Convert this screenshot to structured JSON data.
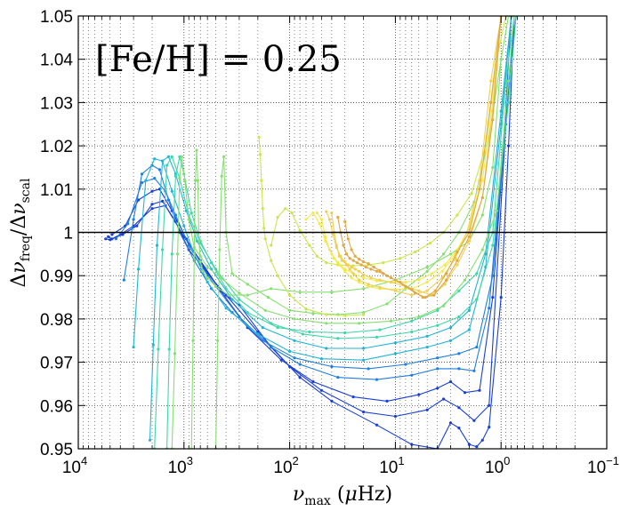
{
  "chart_data": {
    "type": "line",
    "title": "",
    "annotation": "[Fe/H] = 0.25",
    "xlabel": "νmax (μHz)",
    "ylabel": "Δνfreq/Δνscal",
    "x_scale": "log",
    "x_reversed": true,
    "xlim": [
      10000,
      0.1
    ],
    "ylim": [
      0.95,
      1.05
    ],
    "x_ticks": [
      {
        "value": 10000,
        "base": "10",
        "exp": "4"
      },
      {
        "value": 1000,
        "base": "10",
        "exp": "3"
      },
      {
        "value": 100,
        "base": "10",
        "exp": "2"
      },
      {
        "value": 10,
        "base": "10",
        "exp": "1"
      },
      {
        "value": 1,
        "base": "10",
        "exp": "0"
      },
      {
        "value": 0.1,
        "base": "10",
        "exp": "−1"
      }
    ],
    "y_ticks": [
      "0.95",
      "0.96",
      "0.97",
      "0.98",
      "0.99",
      "1",
      "1.01",
      "1.02",
      "1.03",
      "1.04",
      "1.05"
    ],
    "grid": "dotted",
    "reference_line": 1.0,
    "colormap": [
      "#1a3fd6",
      "#1f7fe0",
      "#22b5d6",
      "#3fd6a8",
      "#86e070",
      "#c8e84a",
      "#f2e94a",
      "#f0d050",
      "#e0a845"
    ],
    "series": [
      {
        "x": [
          5500,
          5000,
          4000,
          3000,
          2000,
          1500,
          1000,
          700,
          450,
          300,
          150,
          80,
          40,
          15,
          7,
          4,
          3,
          2.5,
          2,
          1.7,
          1.5,
          1.3,
          1,
          0.85,
          0.75
        ],
        "y": [
          0.9985,
          0.9983,
          0.9995,
          1.0015,
          1.0055,
          1.0062,
          0.999,
          0.9935,
          0.9865,
          0.9832,
          0.9735,
          0.9665,
          0.961,
          0.9555,
          0.951,
          0.95,
          0.956,
          0.9548,
          0.951,
          0.9505,
          0.952,
          0.955,
          0.985,
          1.02,
          1.05
        ]
      },
      {
        "x": [
          5200,
          4800,
          3800,
          2800,
          2000,
          1600,
          1200,
          900,
          600,
          400,
          200,
          100,
          50,
          20,
          10,
          5,
          3.5,
          2.5,
          1.8,
          1.3,
          0.9,
          0.75
        ],
        "y": [
          0.999,
          0.9985,
          0.9995,
          1.0015,
          1.0065,
          1.0072,
          1.0025,
          0.996,
          0.9905,
          0.9855,
          0.977,
          0.969,
          0.9635,
          0.9585,
          0.9575,
          0.959,
          0.9615,
          0.9595,
          0.9565,
          0.96,
          1.025,
          1.05
        ]
      },
      {
        "x": [
          4800,
          3600,
          2700,
          2000,
          1700,
          1300,
          950,
          650,
          450,
          250,
          120,
          60,
          25,
          12,
          6,
          4,
          3,
          2.2,
          1.6,
          1.2,
          0.85,
          0.72
        ],
        "y": [
          0.9995,
          1.0015,
          1.0075,
          1.0095,
          1.01,
          1.005,
          0.9985,
          0.992,
          0.9865,
          0.978,
          0.9705,
          0.9655,
          0.962,
          0.961,
          0.9625,
          0.964,
          0.9655,
          0.963,
          0.9635,
          0.985,
          1.035,
          1.05
        ]
      },
      {
        "x": [
          4400,
          3400,
          2500,
          1900,
          1500,
          1200,
          900,
          700,
          500,
          300,
          150,
          80,
          35,
          15,
          7,
          4,
          2.5,
          1.8,
          1.3,
          0.95,
          0.8
        ],
        "y": [
          0.9985,
          1.002,
          1.0115,
          1.0125,
          1.0095,
          1.004,
          0.997,
          0.9925,
          0.9875,
          0.9805,
          0.9735,
          0.9695,
          0.9665,
          0.966,
          0.967,
          0.9685,
          0.9685,
          0.968,
          0.9825,
          1.02,
          1.05
        ]
      },
      {
        "x": [
          3700,
          3000,
          2500,
          2000,
          1700,
          1400,
          1100,
          800,
          550,
          350,
          180,
          90,
          40,
          18,
          8,
          4,
          2.5,
          1.7,
          1.2,
          0.9,
          0.75
        ],
        "y": [
          0.989,
          1.003,
          1.0135,
          1.0155,
          1.0145,
          1.0075,
          1.0,
          0.9935,
          0.987,
          0.9815,
          0.975,
          0.971,
          0.969,
          0.9685,
          0.9695,
          0.971,
          0.972,
          0.9735,
          0.99,
          1.025,
          1.05
        ]
      },
      {
        "x": [
          3000,
          2700,
          2300,
          1900,
          1600,
          1300,
          1000,
          800,
          600,
          400,
          200,
          100,
          50,
          20,
          10,
          5,
          3,
          2,
          1.4,
          1.0,
          0.8
        ],
        "y": [
          0.9735,
          0.9915,
          1.012,
          1.017,
          1.0165,
          1.0095,
          1.0015,
          0.995,
          0.9885,
          0.9825,
          0.9765,
          0.9725,
          0.9708,
          0.9705,
          0.972,
          0.9735,
          0.975,
          0.9775,
          0.992,
          1.025,
          1.05
        ]
      },
      {
        "x": [
          2100,
          1950,
          1800,
          1600,
          1400,
          1200,
          950,
          750,
          550,
          350,
          180,
          90,
          45,
          20,
          10,
          5,
          3,
          2,
          1.4,
          1.0,
          0.8
        ],
        "y": [
          0.952,
          0.974,
          0.997,
          1.0165,
          1.0175,
          1.0135,
          1.005,
          0.998,
          0.9915,
          0.9845,
          0.978,
          0.975,
          0.9732,
          0.9732,
          0.9745,
          0.976,
          0.978,
          0.982,
          0.995,
          1.028,
          1.05
        ]
      },
      {
        "x": [
          1900,
          1750,
          1600,
          1450,
          1300,
          1100,
          900,
          700,
          500,
          300,
          150,
          75,
          35,
          15,
          7,
          4,
          2.5,
          1.7,
          1.2,
          0.85,
          0.72
        ],
        "y": [
          0.95,
          0.973,
          0.996,
          1.0155,
          1.0175,
          1.0125,
          1.004,
          0.9975,
          0.9915,
          0.9845,
          0.979,
          0.9765,
          0.9755,
          0.9758,
          0.977,
          0.9785,
          0.9805,
          0.9845,
          0.997,
          1.03,
          1.05
        ]
      },
      {
        "x": [
          1450,
          1380,
          1300,
          1200,
          1100,
          1000,
          850,
          700,
          550,
          400,
          250,
          130,
          65,
          30,
          14,
          7,
          4,
          2.5,
          1.7,
          1.2,
          0.9,
          0.75
        ],
        "y": [
          0.95,
          0.973,
          0.995,
          1.013,
          1.0175,
          1.0135,
          1.0045,
          0.998,
          0.993,
          0.987,
          0.9815,
          0.978,
          0.977,
          0.9768,
          0.9775,
          0.9795,
          0.982,
          0.9865,
          0.9905,
          1.0,
          1.035,
          1.05
        ]
      },
      {
        "x": [
          1300,
          1220,
          1150,
          1100,
          1050,
          980,
          900,
          800,
          700,
          600,
          450,
          300,
          170,
          90,
          45,
          22,
          11,
          6,
          3.5,
          2.2,
          1.5,
          1.1,
          0.85,
          0.75
        ],
        "y": [
          0.95,
          0.972,
          0.995,
          1.0125,
          1.0175,
          1.012,
          1.003,
          0.9965,
          0.9945,
          0.992,
          0.9895,
          0.986,
          0.982,
          0.98,
          0.979,
          0.979,
          0.9795,
          0.9805,
          0.983,
          0.989,
          0.996,
          1.005,
          1.035,
          1.05
        ]
      },
      {
        "x": [
          850,
          820,
          800,
          780,
          760,
          740,
          720,
          700,
          660,
          600,
          500,
          380,
          250,
          150,
          80,
          40,
          20,
          10,
          5,
          3,
          2,
          1.5,
          1.2,
          1.0,
          0.85
        ],
        "y": [
          0.95,
          0.975,
          0.995,
          1.012,
          1.019,
          1.012,
          0.998,
          0.9932,
          0.991,
          0.9895,
          0.9875,
          0.9855,
          0.9855,
          0.987,
          0.9862,
          0.9862,
          0.987,
          0.989,
          0.992,
          0.995,
          0.998,
          1.004,
          1.015,
          1.04,
          1.05
        ]
      },
      {
        "x": [
          500,
          480,
          460,
          440,
          420,
          400,
          350,
          250,
          160,
          100,
          60,
          35,
          20,
          12,
          8,
          5,
          3.5,
          2.5,
          1.8,
          1.3,
          1.0
        ],
        "y": [
          0.95,
          0.975,
          0.996,
          1.013,
          1.0175,
          1.0,
          0.9905,
          0.988,
          0.985,
          0.982,
          0.9813,
          0.981,
          0.9815,
          0.9835,
          0.987,
          0.991,
          0.995,
          1.0,
          1.007,
          1.022,
          1.04
        ]
      },
      {
        "x": [
          195,
          190,
          185,
          180,
          175,
          170,
          150,
          130,
          100,
          70,
          45,
          30,
          20
        ],
        "y": [
          1.022,
          1.018,
          1.012,
          1.0055,
          1.001,
          0.9985,
          0.9935,
          0.99,
          0.9855,
          0.9823,
          0.981,
          0.9808,
          0.981
        ]
      },
      {
        "x": [
          150,
          130,
          110,
          95,
          80,
          65,
          55,
          45,
          35,
          25,
          18,
          13,
          9,
          6.5,
          4.7,
          3.5,
          2.6,
          1.9,
          1.4,
          1.1,
          0.9
        ],
        "y": [
          0.997,
          1.0035,
          1.0055,
          1.0045,
          1.0005,
          0.997,
          0.9945,
          0.993,
          0.9925,
          0.9923,
          0.9925,
          0.993,
          0.994,
          0.9955,
          0.9975,
          1.0,
          1.004,
          1.009,
          1.02,
          1.04,
          1.05
        ]
      },
      {
        "x": [
          70,
          60,
          52,
          46,
          40,
          35,
          30,
          25,
          20,
          15,
          11,
          8,
          6,
          4.5,
          3.4,
          2.6,
          2,
          1.5,
          1.2,
          1.0
        ],
        "y": [
          1.003,
          1.0045,
          1.002,
          0.998,
          0.995,
          0.993,
          0.9915,
          0.9905,
          0.9895,
          0.9888,
          0.9885,
          0.9885,
          0.989,
          0.9905,
          0.9925,
          0.996,
          1.001,
          1.012,
          1.03,
          1.05
        ]
      },
      {
        "x": [
          55,
          50,
          46,
          42,
          38,
          34,
          30,
          26,
          22,
          18,
          14,
          10,
          7,
          5,
          3.6,
          2.7,
          2.1,
          1.6,
          1.25,
          1.0
        ],
        "y": [
          1.0045,
          1.003,
          0.999,
          0.996,
          0.994,
          0.9925,
          0.991,
          0.9895,
          0.9885,
          0.9875,
          0.987,
          0.9868,
          0.987,
          0.9885,
          0.991,
          0.995,
          1.0,
          1.01,
          1.03,
          1.05
        ]
      },
      {
        "x": [
          45,
          42,
          39,
          36,
          33,
          31,
          29,
          27,
          25,
          22,
          18,
          14,
          10,
          7,
          5,
          3.6,
          2.7,
          2.1,
          1.6,
          1.25,
          1.0
        ],
        "y": [
          1.0048,
          1.003,
          0.9995,
          0.9965,
          0.9945,
          0.9935,
          0.9925,
          0.9915,
          0.9905,
          0.989,
          0.988,
          0.9873,
          0.9865,
          0.9855,
          0.9865,
          0.9895,
          0.994,
          1.0,
          1.012,
          1.035,
          1.05
        ]
      },
      {
        "x": [
          40,
          38,
          36,
          34,
          32,
          30,
          28,
          26,
          24,
          22,
          20,
          17,
          14,
          11,
          8,
          6,
          4.5,
          3.4,
          2.6,
          2,
          1.5,
          1.2,
          1.0
        ],
        "y": [
          1.0045,
          1.0,
          0.997,
          0.9945,
          0.9935,
          0.9932,
          0.9925,
          0.992,
          0.9915,
          0.991,
          0.9902,
          0.9895,
          0.989,
          0.9885,
          0.9875,
          0.9865,
          0.9855,
          0.988,
          0.9925,
          0.998,
          1.008,
          1.028,
          1.05
        ]
      },
      {
        "x": [
          35,
          33,
          31,
          29,
          27,
          25,
          23,
          21,
          19,
          17,
          15,
          13,
          11,
          9,
          7,
          5.5,
          4.3,
          3.3,
          2.6,
          2,
          1.5,
          1.2,
          1.0
        ],
        "y": [
          1.0035,
          1.0,
          0.997,
          0.995,
          0.994,
          0.9935,
          0.993,
          0.9925,
          0.992,
          0.9915,
          0.991,
          0.9905,
          0.9895,
          0.9885,
          0.9868,
          0.985,
          0.9855,
          0.989,
          0.9935,
          0.999,
          1.008,
          1.026,
          1.05
        ]
      },
      {
        "x": [
          30,
          28,
          26,
          24,
          22,
          20,
          18,
          16,
          14,
          12,
          10,
          8,
          6.5,
          5.2,
          4.2,
          3.3,
          2.6,
          2,
          1.6,
          1.25,
          1.0
        ],
        "y": [
          1.0025,
          0.9985,
          0.996,
          0.9945,
          0.9938,
          0.9932,
          0.9928,
          0.992,
          0.9912,
          0.99,
          0.989,
          0.9875,
          0.986,
          0.985,
          0.9865,
          0.9905,
          0.9955,
          1.0,
          1.01,
          1.03,
          1.05
        ]
      }
    ]
  }
}
